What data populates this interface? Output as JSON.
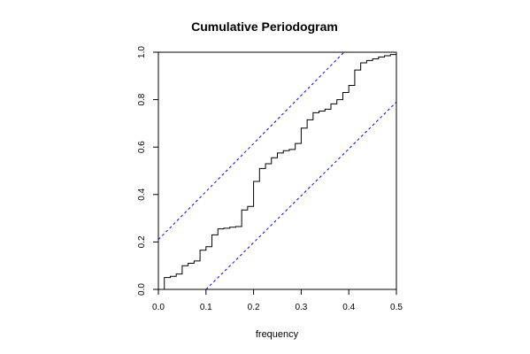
{
  "chart_data": {
    "type": "line",
    "title": "Cumulative Periodogram",
    "xlabel": "frequency",
    "ylabel": "",
    "xlim": [
      0,
      0.5
    ],
    "ylim": [
      0,
      1
    ],
    "x_ticks": [
      "0.0",
      "0.1",
      "0.2",
      "0.3",
      "0.4",
      "0.5"
    ],
    "y_ticks": [
      "0.0",
      "0.2",
      "0.4",
      "0.6",
      "0.8",
      "1.0"
    ],
    "grid": false,
    "series": [
      {
        "kind": "step",
        "color": "#000000",
        "x": [
          0,
          0.0125,
          0.025,
          0.0375,
          0.05,
          0.0625,
          0.075,
          0.0875,
          0.1,
          0.1125,
          0.125,
          0.1375,
          0.15,
          0.1625,
          0.175,
          0.1875,
          0.2,
          0.2125,
          0.225,
          0.2375,
          0.25,
          0.2625,
          0.275,
          0.2875,
          0.3,
          0.3125,
          0.325,
          0.3375,
          0.35,
          0.3625,
          0.375,
          0.3875,
          0.4,
          0.4125,
          0.425,
          0.4375,
          0.45,
          0.4625,
          0.475,
          0.4875,
          0.5
        ],
        "y": [
          0,
          0.05,
          0.055,
          0.065,
          0.1,
          0.11,
          0.12,
          0.165,
          0.18,
          0.23,
          0.255,
          0.258,
          0.262,
          0.265,
          0.335,
          0.35,
          0.455,
          0.51,
          0.53,
          0.555,
          0.575,
          0.585,
          0.59,
          0.615,
          0.68,
          0.715,
          0.745,
          0.752,
          0.76,
          0.782,
          0.8,
          0.83,
          0.86,
          0.925,
          0.955,
          0.965,
          0.972,
          0.98,
          0.985,
          0.99,
          0.995
        ]
      },
      {
        "kind": "dashed",
        "color": "#0000FF",
        "x": [
          0,
          0.39
        ],
        "y": [
          0.21,
          1.0
        ]
      },
      {
        "kind": "dashed",
        "color": "#0000FF",
        "x": [
          0.1,
          0.5
        ],
        "y": [
          0.0,
          0.79
        ]
      }
    ]
  }
}
